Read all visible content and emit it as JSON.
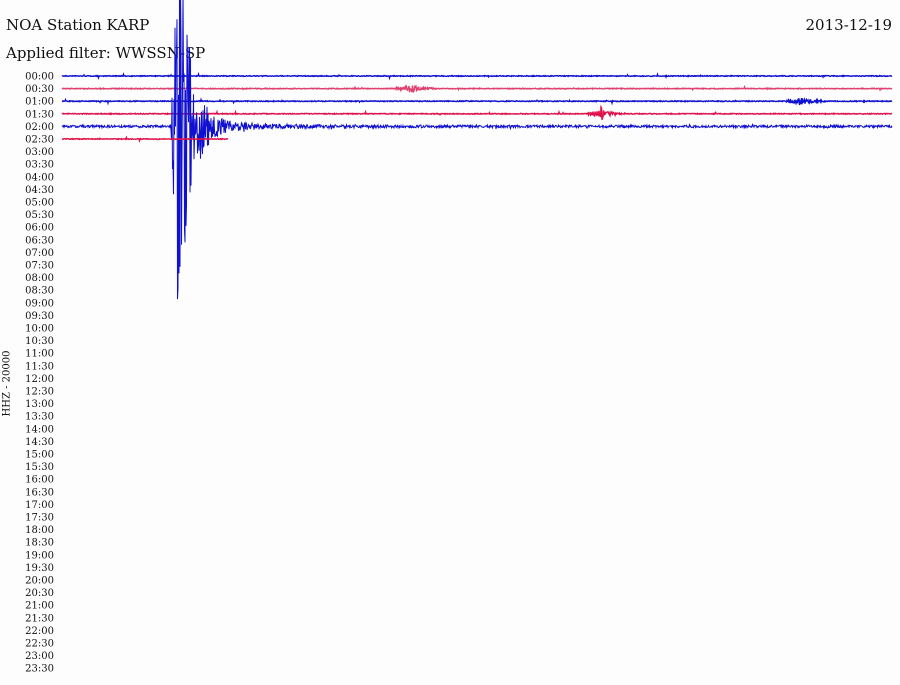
{
  "header": {
    "title": "NOA Station KARP",
    "filter": "Applied filter: WWSSN-SP",
    "date": "2013-12-19"
  },
  "chart_data": {
    "type": "line",
    "subtype": "helicorder",
    "ylabel": "HHZ - 20000",
    "row_labels": [
      "00:00",
      "00:30",
      "01:00",
      "01:30",
      "02:00",
      "02:30",
      "03:00",
      "03:30",
      "04:00",
      "04:30",
      "05:00",
      "05:30",
      "06:00",
      "06:30",
      "07:00",
      "07:30",
      "08:00",
      "08:30",
      "09:00",
      "09:30",
      "10:00",
      "10:30",
      "11:00",
      "11:30",
      "12:00",
      "12:30",
      "13:00",
      "13:30",
      "14:00",
      "14:30",
      "15:00",
      "15:30",
      "16:00",
      "16:30",
      "17:00",
      "17:30",
      "18:00",
      "18:30",
      "19:00",
      "19:30",
      "20:00",
      "20:30",
      "21:00",
      "21:30",
      "22:00",
      "22:30",
      "23:00",
      "23:30"
    ],
    "row_colors": [
      "#1010d0",
      "#e0306a"
    ],
    "traces": [
      {
        "row": "00:00",
        "color": "#1010d0",
        "end_fraction": 1.0
      },
      {
        "row": "00:30",
        "color": "#e04070",
        "end_fraction": 1.0,
        "event_fraction": 0.42
      },
      {
        "row": "01:00",
        "color": "#1010d0",
        "end_fraction": 1.0,
        "event_fraction": 0.89
      },
      {
        "row": "01:30",
        "color": "#e0104a",
        "end_fraction": 1.0,
        "event_fraction": 0.65
      },
      {
        "row": "02:00",
        "color": "#1010d0",
        "end_fraction": 1.0,
        "event_fraction": 0.14,
        "large_event": true
      },
      {
        "row": "02:30",
        "color": "#e0104a",
        "end_fraction": 0.2
      }
    ]
  }
}
